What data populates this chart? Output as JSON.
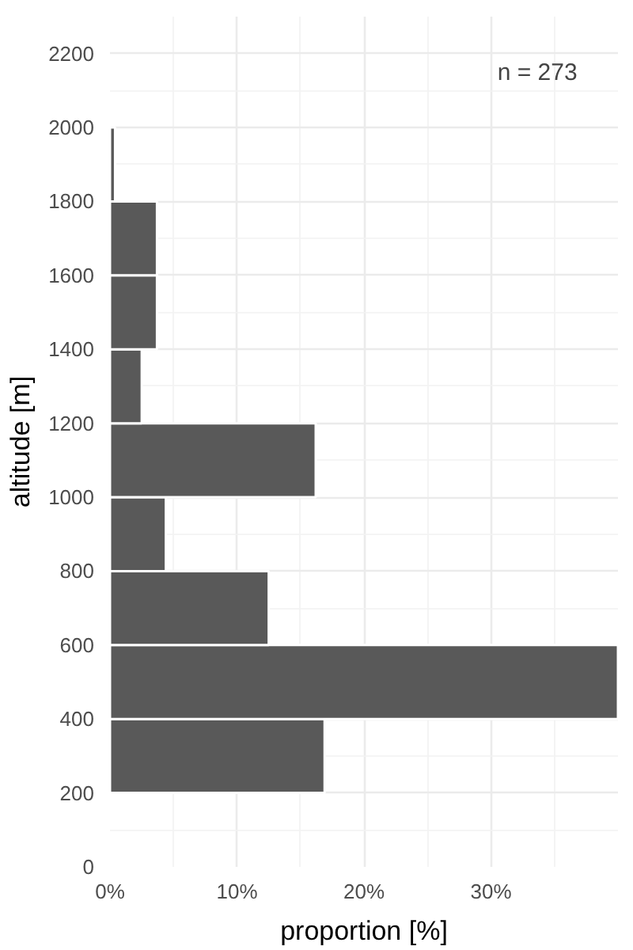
{
  "chart_data": {
    "type": "histogram",
    "orientation": "horizontal",
    "xlabel": "proportion [%]",
    "ylabel": "altitude [m]",
    "annotations": [
      "n = 273"
    ],
    "bins": [
      200,
      400,
      600,
      800,
      1000,
      1200,
      1400,
      1600,
      1800,
      2000
    ],
    "values": [
      16.9,
      40,
      12.5,
      4.4,
      16.2,
      2.5,
      3.7,
      3.7,
      0.4
    ],
    "color": "#595959",
    "xlim": [
      0,
      40
    ],
    "xticks": [
      {
        "value": 0,
        "label": "0%"
      },
      {
        "value": 10,
        "label": "10%"
      },
      {
        "value": 20,
        "label": "20%"
      },
      {
        "value": 30,
        "label": "30%"
      }
    ],
    "ylim": [
      0,
      2300
    ],
    "yticks": [
      0,
      200,
      400,
      600,
      800,
      1000,
      1200,
      1400,
      1600,
      1800,
      2000,
      2200
    ],
    "grid": true
  }
}
